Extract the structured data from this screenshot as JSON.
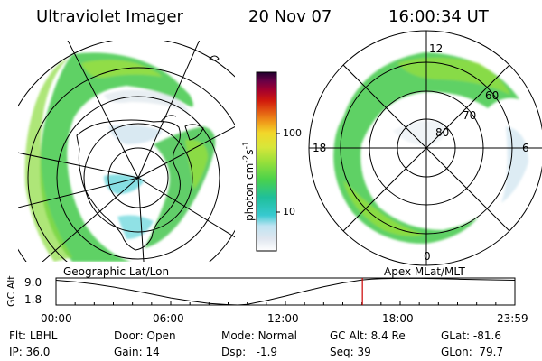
{
  "header": {
    "instrument": "Ultraviolet Imager",
    "date": "20 Nov 07",
    "time": "16:00:34 UT"
  },
  "colorbar": {
    "unit_main": "photon cm",
    "sup1": "-2",
    "unit_s": "s",
    "sup2": "-1",
    "ticks": [
      "100",
      "10"
    ],
    "scale": "log",
    "colors": [
      "#ffffff",
      "#dfe6ef",
      "#bfe4f2",
      "#37c9d0",
      "#1fbf9a",
      "#4bd24b",
      "#9ae03a",
      "#d7e63a",
      "#f2d72a",
      "#f09b1a",
      "#e35a12",
      "#d11a0c",
      "#a3002e",
      "#6a0046",
      "#21002e"
    ]
  },
  "right_map": {
    "labels": {
      "noon": "12",
      "midnight": "0",
      "dusk": "18",
      "dawn": "6",
      "lat60": "60",
      "lat70": "70",
      "lat80": "80"
    }
  },
  "timeline": {
    "left_label": "Geographic Lat/Lon",
    "right_label": "Apex MLat/MLT",
    "y_axis_label": "GC Alt",
    "y_ticks": [
      "9.0",
      "1.8"
    ],
    "x_ticks": [
      "00:00",
      "06:00",
      "12:00",
      "18:00",
      "23:59"
    ],
    "marker_color": "#cc0000"
  },
  "chart_data": {
    "type": "line",
    "xlabel": "",
    "ylabel": "GC Alt",
    "ylim": [
      1.8,
      9.0
    ],
    "x": [
      0,
      1,
      2,
      3,
      4,
      5,
      6,
      7,
      8,
      9,
      9.5,
      10,
      11,
      12,
      13,
      14,
      15,
      16,
      16.5,
      17,
      18,
      19,
      20,
      21,
      22,
      23,
      23.98
    ],
    "series": [
      {
        "values": [
          8.4,
          8.0,
          7.4,
          6.6,
          5.7,
          4.7,
          3.7,
          2.9,
          2.2,
          1.9,
          1.8,
          2.0,
          3.0,
          4.2,
          5.5,
          6.7,
          7.7,
          8.5,
          8.7,
          8.8,
          8.9,
          8.9,
          8.8,
          8.7,
          8.6,
          8.5,
          8.4
        ]
      }
    ],
    "marker_x": 16.01
  },
  "status": {
    "flt_label": "Flt:",
    "flt_value": "LBHL",
    "ip_label": "IP:",
    "ip_value": "36.0",
    "door_label": "Door:",
    "door_value": "Open",
    "gain_label": "Gain:",
    "gain_value": "14",
    "mode_label": "Mode:",
    "mode_value": "Normal",
    "dsp_label": "Dsp:",
    "dsp_value": "-1.9",
    "gcalt_label": "GC Alt:",
    "gcalt_value": "8.4 Re",
    "seq_label": "Seq:",
    "seq_value": "39",
    "glat_label": "GLat:",
    "glat_value": "-81.6",
    "glon_label": "GLon:",
    "glon_value": "79.7"
  }
}
